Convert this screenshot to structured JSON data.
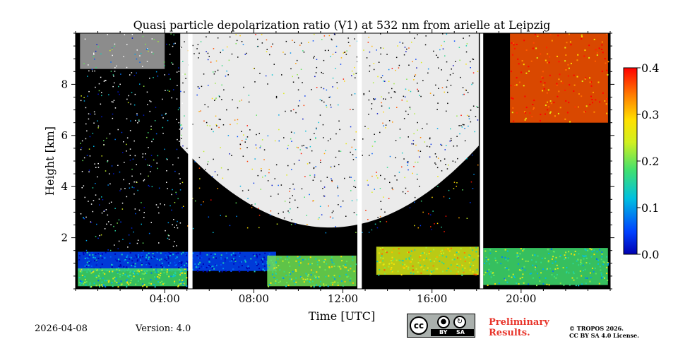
{
  "chart_data": {
    "type": "heatmap",
    "title": "Quasi particle depolarization ratio (V1) at 532 nm from arielle at Leipzig",
    "xlabel": "Time [UTC]",
    "ylabel": "Height [km]",
    "xlim": [
      0,
      24
    ],
    "ylim": [
      0,
      10
    ],
    "xticks": [
      {
        "value": 4,
        "label": "04:00"
      },
      {
        "value": 8,
        "label": "08:00"
      },
      {
        "value": 12,
        "label": "12:00"
      },
      {
        "value": 16,
        "label": "16:00"
      },
      {
        "value": 20,
        "label": "20:00"
      }
    ],
    "yticks": [
      {
        "value": 2,
        "label": "2"
      },
      {
        "value": 4,
        "label": "4"
      },
      {
        "value": 6,
        "label": "6"
      },
      {
        "value": 8,
        "label": "8"
      }
    ],
    "colorbar": {
      "min": 0.0,
      "max": 0.4,
      "colormap": "jet",
      "ticks": [
        {
          "value": 0.0,
          "label": "0.0"
        },
        {
          "value": 0.1,
          "label": "0.1"
        },
        {
          "value": 0.2,
          "label": "0.2"
        },
        {
          "value": 0.3,
          "label": "0.3"
        },
        {
          "value": 0.4,
          "label": "0.4"
        }
      ]
    },
    "data_gaps_hours": [
      [
        5.05,
        5.25
      ],
      [
        12.65,
        12.85
      ],
      [
        18.15,
        18.3
      ]
    ],
    "layers": [
      {
        "name": "boundary-layer-aerosol",
        "t_start": 0.1,
        "t_end": 9.0,
        "base_km": 0.7,
        "top_km": 1.45,
        "value": 0.05
      },
      {
        "name": "low-cloud-base-morning",
        "t_start": 0.1,
        "t_end": 5.0,
        "base_km": 0.1,
        "top_km": 0.8,
        "value": 0.18
      },
      {
        "name": "convective-layer-midday",
        "t_start": 8.6,
        "t_end": 12.6,
        "base_km": 0.1,
        "top_km": 1.3,
        "value": 0.2
      },
      {
        "name": "afternoon-aerosol",
        "t_start": 13.5,
        "t_end": 18.1,
        "base_km": 0.55,
        "top_km": 1.65,
        "value": 0.25
      },
      {
        "name": "evening-aerosol",
        "t_start": 18.3,
        "t_end": 23.9,
        "base_km": 0.15,
        "top_km": 1.6,
        "value": 0.18
      },
      {
        "name": "high-depolarizing-cloud",
        "t_start": 19.5,
        "t_end": 23.9,
        "base_km": 6.5,
        "top_km": 10.0,
        "value": 0.36
      }
    ]
  },
  "footer": {
    "date": "2026-04-08",
    "version": "Version: 4.0",
    "cc_label": "cc",
    "by_label": "BY",
    "sa_label": "SA",
    "preliminary_line1": "Preliminary",
    "preliminary_line2": "Results.",
    "copyright_line1": "© TROPOS 2026.",
    "copyright_line2": "CC BY SA 4.0 License."
  },
  "colors": {
    "background": "#ffffff",
    "no_signal": "#000000",
    "preliminary": "#e8352b",
    "cc_badge": "#aab0ad"
  }
}
